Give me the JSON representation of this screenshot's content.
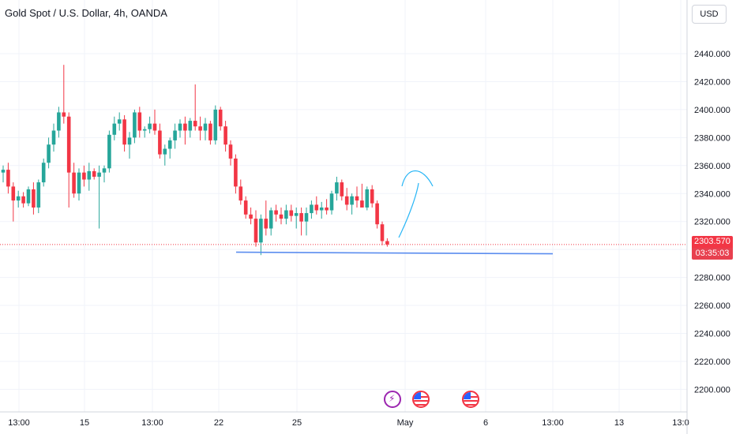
{
  "header": {
    "title": "Gold Spot / U.S. Dollar, 4h, OANDA",
    "currency_button": "USD"
  },
  "price_axis": {
    "labels": [
      "2440.000",
      "2420.000",
      "2400.000",
      "2380.000",
      "2360.000",
      "2340.000",
      "2320.000",
      "2300.000",
      "2280.000",
      "2260.000",
      "2240.000",
      "2220.000",
      "2200.000"
    ],
    "last_price": "2303.570",
    "countdown": "03:35:03"
  },
  "time_axis": {
    "labels": [
      "13:00",
      "15",
      "13:00",
      "22",
      "25",
      "May",
      "6",
      "13:00",
      "13",
      "13:0"
    ]
  },
  "colors": {
    "up": "#26a69a",
    "down": "#f23645",
    "grid": "#f0f3fa",
    "support_line": "#5b8def",
    "arrow": "#29b6f6",
    "event_purple": "#9c27b0"
  },
  "events": [
    {
      "icon": "lightning-icon"
    },
    {
      "icon": "us-flag-icon"
    },
    {
      "icon": "us-flag-icon"
    }
  ],
  "chart_data": {
    "type": "candlestick",
    "title": "Gold Spot / U.S. Dollar, 4h, OANDA",
    "ylim": [
      2190,
      2450
    ],
    "last": 2303.57,
    "support_level": 2302,
    "candles": [
      [
        2355,
        2360,
        2348,
        2357
      ],
      [
        2357,
        2362,
        2340,
        2345
      ],
      [
        2345,
        2348,
        2320,
        2335
      ],
      [
        2335,
        2342,
        2330,
        2338
      ],
      [
        2338,
        2341,
        2330,
        2333
      ],
      [
        2333,
        2345,
        2331,
        2343
      ],
      [
        2343,
        2348,
        2325,
        2330
      ],
      [
        2330,
        2350,
        2326,
        2348
      ],
      [
        2348,
        2365,
        2345,
        2362
      ],
      [
        2362,
        2380,
        2358,
        2375
      ],
      [
        2375,
        2390,
        2370,
        2385
      ],
      [
        2385,
        2402,
        2380,
        2398
      ],
      [
        2398,
        2432,
        2390,
        2395
      ],
      [
        2395,
        2398,
        2330,
        2355
      ],
      [
        2355,
        2362,
        2337,
        2340
      ],
      [
        2340,
        2358,
        2335,
        2355
      ],
      [
        2355,
        2360,
        2345,
        2350
      ],
      [
        2350,
        2362,
        2342,
        2356
      ],
      [
        2356,
        2358,
        2350,
        2352
      ],
      [
        2352,
        2360,
        2315,
        2355
      ],
      [
        2355,
        2360,
        2348,
        2358
      ],
      [
        2358,
        2385,
        2355,
        2382
      ],
      [
        2382,
        2395,
        2378,
        2390
      ],
      [
        2390,
        2398,
        2385,
        2393
      ],
      [
        2393,
        2396,
        2370,
        2375
      ],
      [
        2375,
        2384,
        2365,
        2380
      ],
      [
        2380,
        2400,
        2376,
        2398
      ],
      [
        2398,
        2402,
        2380,
        2385
      ],
      [
        2385,
        2388,
        2380,
        2386
      ],
      [
        2386,
        2395,
        2383,
        2390
      ],
      [
        2390,
        2400,
        2382,
        2385
      ],
      [
        2385,
        2390,
        2365,
        2368
      ],
      [
        2368,
        2375,
        2360,
        2372
      ],
      [
        2372,
        2380,
        2365,
        2378
      ],
      [
        2378,
        2390,
        2372,
        2385
      ],
      [
        2385,
        2393,
        2380,
        2390
      ],
      [
        2390,
        2395,
        2375,
        2385
      ],
      [
        2385,
        2394,
        2380,
        2392
      ],
      [
        2392,
        2418,
        2385,
        2388
      ],
      [
        2388,
        2395,
        2378,
        2385
      ],
      [
        2385,
        2394,
        2378,
        2390
      ],
      [
        2390,
        2392,
        2375,
        2378
      ],
      [
        2378,
        2403,
        2375,
        2400
      ],
      [
        2400,
        2402,
        2385,
        2388
      ],
      [
        2388,
        2392,
        2370,
        2375
      ],
      [
        2375,
        2378,
        2360,
        2365
      ],
      [
        2365,
        2368,
        2340,
        2345
      ],
      [
        2345,
        2350,
        2332,
        2335
      ],
      [
        2335,
        2338,
        2322,
        2325
      ],
      [
        2325,
        2330,
        2318,
        2322
      ],
      [
        2322,
        2328,
        2302,
        2305
      ],
      [
        2305,
        2325,
        2296,
        2322
      ],
      [
        2322,
        2335,
        2310,
        2315
      ],
      [
        2315,
        2330,
        2310,
        2328
      ],
      [
        2328,
        2332,
        2320,
        2325
      ],
      [
        2325,
        2330,
        2318,
        2322
      ],
      [
        2322,
        2332,
        2318,
        2328
      ],
      [
        2328,
        2332,
        2320,
        2324
      ],
      [
        2324,
        2330,
        2315,
        2326
      ],
      [
        2326,
        2330,
        2310,
        2320
      ],
      [
        2320,
        2330,
        2310,
        2326
      ],
      [
        2326,
        2335,
        2322,
        2332
      ],
      [
        2332,
        2338,
        2325,
        2328
      ],
      [
        2328,
        2334,
        2322,
        2330
      ],
      [
        2330,
        2336,
        2325,
        2328
      ],
      [
        2328,
        2342,
        2325,
        2340
      ],
      [
        2340,
        2352,
        2335,
        2348
      ],
      [
        2348,
        2350,
        2335,
        2338
      ],
      [
        2338,
        2344,
        2328,
        2332
      ],
      [
        2332,
        2340,
        2325,
        2338
      ],
      [
        2338,
        2345,
        2330,
        2335
      ],
      [
        2335,
        2347,
        2330,
        2330
      ],
      [
        2330,
        2345,
        2328,
        2343
      ],
      [
        2343,
        2346,
        2330,
        2333
      ],
      [
        2333,
        2335,
        2315,
        2318
      ],
      [
        2318,
        2320,
        2303,
        2306
      ],
      [
        2306,
        2308,
        2302,
        2303.57
      ]
    ]
  }
}
